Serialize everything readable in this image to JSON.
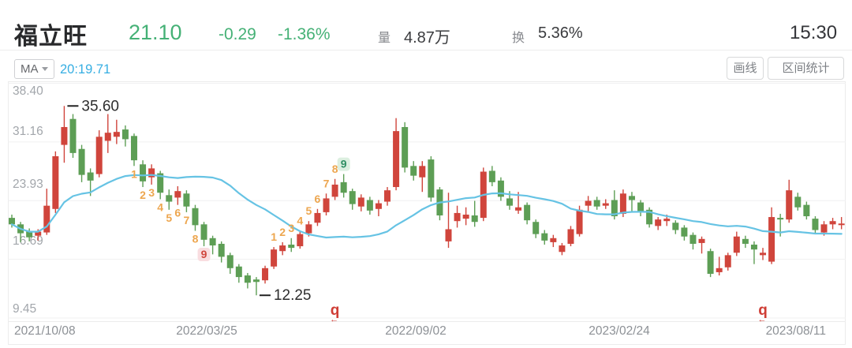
{
  "header": {
    "stock_name": "福立旺",
    "price": "21.10",
    "change": "-0.29",
    "change_pct": "-1.36%",
    "volume_label": "量",
    "volume": "4.87万",
    "turnover_label": "换",
    "turnover": "5.36%",
    "time": "15:30"
  },
  "toolbar": {
    "ma_label": "MA",
    "ma_value": "20:19.71",
    "draw_line_label": "画线",
    "range_stats_label": "区间统计"
  },
  "colors": {
    "up": "#d0453c",
    "down": "#5d9e55",
    "ma_line": "#66c3e4",
    "price_text": "#45b176",
    "td_digit": "#eda64f",
    "td9_buy_bg": "#f9dde0",
    "td9_buy_text": "#d0453c",
    "td9_sell_bg": "#dcefe0",
    "td9_sell_text": "#2f8f63",
    "event_marker": "#cf3d35",
    "grid": "#f0f0f1",
    "frame": "#ececec",
    "axis_text": "#a2a6ab",
    "date_text": "#8d9196",
    "annotation_text": "#2e2e2e"
  },
  "chart_data": {
    "type": "candlestick",
    "title": "福立旺 weekly K-line",
    "ylim": [
      9.45,
      38.4
    ],
    "y_ticks": [
      "38.40",
      "31.16",
      "23.93",
      "16.69",
      "9.45"
    ],
    "y_tick_values": [
      38.4,
      31.16,
      23.93,
      16.69,
      9.45
    ],
    "x_ticks": [
      "2021/10/08",
      "2022/03/25",
      "2022/09/02",
      "2023/02/24",
      "2023/08/11"
    ],
    "ma_window": 20,
    "candles_format": [
      "open",
      "close",
      "low",
      "high"
    ],
    "candles": [
      [
        21.8,
        21.0,
        20.6,
        22.2
      ],
      [
        21.0,
        19.9,
        18.8,
        21.3
      ],
      [
        20.2,
        19.4,
        18.9,
        20.5
      ],
      [
        19.6,
        20.1,
        19.0,
        20.4
      ],
      [
        20.0,
        23.3,
        19.7,
        25.4
      ],
      [
        22.9,
        29.4,
        22.4,
        30.0
      ],
      [
        30.8,
        33.0,
        28.6,
        35.6
      ],
      [
        34.0,
        29.8,
        29.2,
        34.6
      ],
      [
        30.3,
        27.1,
        26.2,
        30.8
      ],
      [
        27.4,
        26.4,
        24.5,
        27.9
      ],
      [
        27.2,
        31.8,
        26.8,
        32.6
      ],
      [
        31.3,
        32.3,
        29.8,
        34.6
      ],
      [
        31.8,
        32.4,
        30.9,
        33.9
      ],
      [
        32.7,
        31.5,
        30.6,
        33.2
      ],
      [
        31.9,
        28.9,
        28.2,
        32.2
      ],
      [
        28.4,
        26.3,
        25.6,
        28.9
      ],
      [
        26.8,
        27.9,
        25.9,
        28.4
      ],
      [
        27.3,
        24.9,
        24.1,
        27.6
      ],
      [
        24.6,
        23.8,
        22.8,
        25.3
      ],
      [
        24.3,
        25.1,
        23.4,
        25.7
      ],
      [
        24.8,
        23.2,
        22.5,
        25.2
      ],
      [
        23.0,
        20.9,
        20.2,
        23.4
      ],
      [
        21.0,
        19.1,
        18.3,
        21.3
      ],
      [
        19.3,
        18.4,
        17.3,
        19.6
      ],
      [
        18.6,
        17.0,
        16.3,
        18.9
      ],
      [
        17.2,
        15.6,
        14.9,
        17.5
      ],
      [
        15.8,
        14.5,
        13.8,
        16.1
      ],
      [
        14.7,
        13.8,
        13.1,
        15.0
      ],
      [
        14.2,
        13.9,
        12.25,
        14.5
      ],
      [
        14.1,
        15.6,
        13.7,
        15.9
      ],
      [
        15.8,
        17.9,
        15.5,
        18.2
      ],
      [
        17.7,
        18.4,
        17.2,
        18.8
      ],
      [
        18.5,
        18.1,
        17.6,
        19.3
      ],
      [
        18.3,
        19.8,
        18.0,
        20.2
      ],
      [
        19.9,
        21.0,
        19.5,
        21.4
      ],
      [
        21.2,
        22.4,
        20.8,
        22.9
      ],
      [
        22.5,
        24.2,
        22.1,
        24.8
      ],
      [
        24.4,
        25.9,
        24.0,
        26.6
      ],
      [
        26.2,
        24.9,
        24.3,
        27.2
      ],
      [
        25.1,
        23.5,
        22.8,
        25.4
      ],
      [
        23.2,
        24.3,
        22.6,
        24.7
      ],
      [
        24.0,
        22.7,
        22.2,
        24.4
      ],
      [
        22.9,
        23.6,
        22.0,
        24.0
      ],
      [
        23.8,
        25.2,
        23.3,
        25.6
      ],
      [
        25.6,
        32.5,
        25.2,
        34.1
      ],
      [
        33.0,
        28.0,
        27.4,
        33.6
      ],
      [
        28.2,
        27.0,
        26.4,
        28.8
      ],
      [
        26.8,
        28.2,
        25.0,
        28.8
      ],
      [
        29.0,
        24.3,
        23.8,
        29.4
      ],
      [
        25.3,
        22.1,
        21.5,
        25.6
      ],
      [
        18.9,
        20.4,
        18.1,
        24.9
      ],
      [
        21.4,
        22.4,
        20.6,
        23.3
      ],
      [
        21.7,
        22.2,
        20.9,
        23.1
      ],
      [
        22.1,
        21.3,
        20.7,
        23.9
      ],
      [
        21.8,
        27.5,
        21.4,
        28.0
      ],
      [
        27.6,
        26.2,
        25.7,
        28.2
      ],
      [
        26.4,
        24.4,
        23.9,
        26.8
      ],
      [
        24.2,
        23.3,
        22.8,
        25.1
      ],
      [
        22.7,
        23.1,
        22.3,
        25.0
      ],
      [
        23.4,
        21.5,
        21.0,
        23.7
      ],
      [
        21.3,
        19.8,
        19.3,
        21.6
      ],
      [
        19.9,
        19.0,
        18.5,
        20.3
      ],
      [
        18.8,
        19.3,
        18.2,
        19.7
      ],
      [
        17.6,
        18.4,
        17.2,
        18.7
      ],
      [
        18.6,
        20.4,
        18.3,
        20.8
      ],
      [
        19.8,
        22.8,
        19.5,
        23.3
      ],
      [
        23.3,
        23.9,
        22.6,
        24.5
      ],
      [
        24.0,
        23.2,
        22.8,
        24.4
      ],
      [
        23.3,
        23.6,
        22.9,
        24.1
      ],
      [
        24.0,
        22.0,
        21.6,
        25.2
      ],
      [
        22.3,
        24.8,
        21.9,
        25.3
      ],
      [
        24.5,
        24.0,
        22.6,
        25.0
      ],
      [
        23.7,
        22.5,
        22.0,
        24.0
      ],
      [
        22.8,
        21.0,
        20.6,
        23.1
      ],
      [
        20.8,
        21.6,
        20.3,
        21.9
      ],
      [
        21.4,
        21.7,
        20.8,
        22.2
      ],
      [
        21.2,
        20.3,
        19.8,
        21.5
      ],
      [
        20.6,
        19.5,
        19.0,
        20.9
      ],
      [
        19.7,
        18.6,
        17.9,
        20.0
      ],
      [
        18.7,
        19.2,
        17.4,
        19.5
      ],
      [
        17.7,
        14.9,
        14.5,
        18.0
      ],
      [
        15.1,
        15.6,
        14.7,
        17.0
      ],
      [
        15.7,
        17.2,
        15.3,
        17.5
      ],
      [
        17.5,
        19.5,
        17.1,
        20.1
      ],
      [
        19.2,
        18.6,
        18.1,
        19.6
      ],
      [
        18.5,
        17.9,
        16.1,
        18.9
      ],
      [
        17.2,
        17.5,
        16.6,
        18.1
      ],
      [
        16.4,
        21.9,
        16.1,
        23.1
      ],
      [
        21.8,
        21.6,
        19.5,
        22.3
      ],
      [
        21.6,
        25.2,
        21.2,
        26.5
      ],
      [
        24.4,
        23.1,
        22.7,
        24.9
      ],
      [
        23.4,
        22.0,
        21.6,
        23.8
      ],
      [
        21.7,
        20.3,
        19.9,
        22.0
      ],
      [
        20.0,
        21.0,
        19.6,
        21.4
      ],
      [
        21.0,
        21.4,
        20.4,
        21.8
      ],
      [
        21.0,
        21.1,
        20.4,
        21.9
      ]
    ],
    "annotations": {
      "high": {
        "index": 6,
        "text": "35.60",
        "value": 35.6
      },
      "low": {
        "index": 28,
        "text": "12.25",
        "value": 12.25
      }
    },
    "td_sequences": [
      {
        "kind": "buy-setup",
        "side": "below",
        "start_index": 14,
        "digits": [
          "1",
          "2",
          "3",
          "4",
          "5",
          "6",
          "7",
          "8",
          "9"
        ]
      },
      {
        "kind": "sell-setup",
        "side": "above",
        "start_index": 30,
        "digits": [
          "1",
          "2",
          "3",
          "4",
          "5",
          "6",
          "7",
          "8",
          "9"
        ]
      }
    ],
    "event_markers": [
      {
        "index": 37,
        "glyph": "q",
        "arrow": "←"
      },
      {
        "index": 86,
        "glyph": "q",
        "arrow": "←"
      }
    ],
    "grid": true,
    "legend_position": "none"
  }
}
